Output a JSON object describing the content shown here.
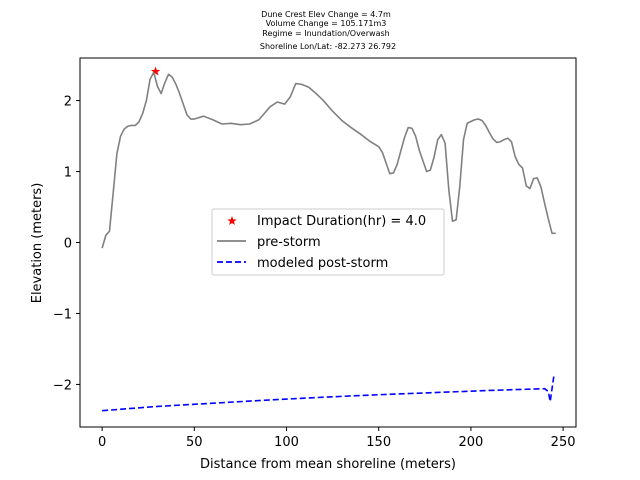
{
  "chart_data": {
    "type": "line",
    "title_lines": [
      "Dune Crest Elev Change = 4.7m",
      "Volume Change = 105.171m3",
      "Regime = Inundation/Overwash",
      "Shoreline Lon/Lat: -82.273 26.792"
    ],
    "xlabel": "Distance from mean shoreline (meters)",
    "ylabel": "Elevation (meters)",
    "xlim": [
      -12,
      257
    ],
    "ylim": [
      -2.6,
      2.6
    ],
    "xticks": [
      0,
      50,
      100,
      150,
      200,
      250
    ],
    "yticks": [
      -2,
      -1,
      0,
      1,
      2
    ],
    "ytick_labels": [
      "−2",
      "−1",
      "0",
      "1",
      "2"
    ],
    "legend_position": "center",
    "grid": false,
    "series": [
      {
        "name": "Impact Duration(hr) = 4.0",
        "kind": "marker",
        "marker": "star",
        "color": "#ff0000",
        "x": [
          29
        ],
        "y": [
          2.41
        ]
      },
      {
        "name": "pre-storm",
        "kind": "line",
        "color": "#808080",
        "dash": "solid",
        "x": [
          0,
          2,
          4,
          6,
          8,
          10,
          12,
          14,
          16,
          18,
          20,
          22,
          24,
          26,
          28,
          30,
          32,
          34,
          36,
          38,
          40,
          42,
          44,
          46,
          48,
          50,
          55,
          60,
          65,
          70,
          75,
          80,
          85,
          88,
          91,
          95,
          99,
          102,
          105,
          108,
          112,
          116,
          120,
          125,
          130,
          135,
          140,
          145,
          150,
          152,
          154,
          156,
          158,
          160,
          162,
          164,
          166,
          168,
          170,
          172,
          174,
          176,
          178,
          180,
          182,
          184,
          186,
          188,
          190,
          192,
          194,
          196,
          198,
          202,
          204,
          206,
          208,
          210,
          212,
          214,
          216,
          218,
          220,
          222,
          224,
          226,
          228,
          230,
          232,
          234,
          236,
          238,
          240,
          242,
          244,
          246
        ],
        "y": [
          -0.08,
          0.1,
          0.16,
          0.7,
          1.25,
          1.5,
          1.6,
          1.64,
          1.65,
          1.65,
          1.7,
          1.82,
          2.0,
          2.3,
          2.4,
          2.2,
          2.1,
          2.25,
          2.37,
          2.33,
          2.23,
          2.1,
          1.95,
          1.8,
          1.74,
          1.74,
          1.78,
          1.73,
          1.67,
          1.68,
          1.66,
          1.67,
          1.73,
          1.82,
          1.91,
          1.98,
          1.95,
          2.05,
          2.24,
          2.23,
          2.19,
          2.1,
          2.0,
          1.85,
          1.72,
          1.62,
          1.53,
          1.43,
          1.35,
          1.27,
          1.12,
          0.97,
          0.98,
          1.1,
          1.29,
          1.48,
          1.62,
          1.61,
          1.5,
          1.3,
          1.15,
          1.0,
          1.02,
          1.2,
          1.45,
          1.52,
          1.4,
          0.75,
          0.3,
          0.32,
          0.8,
          1.45,
          1.68,
          1.73,
          1.74,
          1.72,
          1.65,
          1.55,
          1.46,
          1.41,
          1.42,
          1.45,
          1.47,
          1.42,
          1.21,
          1.1,
          1.05,
          0.8,
          0.76,
          0.9,
          0.91,
          0.78,
          0.55,
          0.33,
          0.13,
          0.13
        ]
      },
      {
        "name": "modeled post-storm",
        "kind": "line",
        "color": "#0000ff",
        "dash": "dashed",
        "x": [
          0,
          30,
          60,
          90,
          120,
          150,
          180,
          210,
          230,
          240,
          242,
          243,
          245
        ],
        "y": [
          -2.37,
          -2.31,
          -2.265,
          -2.22,
          -2.18,
          -2.145,
          -2.115,
          -2.085,
          -2.068,
          -2.06,
          -2.1,
          -2.24,
          -1.88
        ]
      }
    ]
  }
}
